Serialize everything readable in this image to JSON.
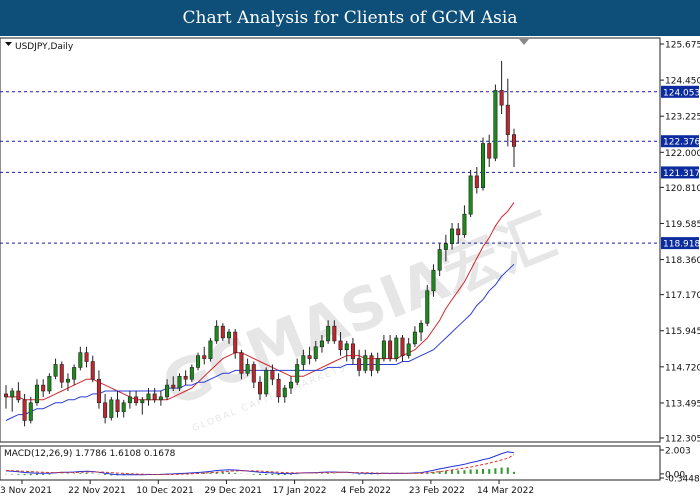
{
  "header": {
    "title": "Chart Analysis for Clients of GCM Asia"
  },
  "watermark": {
    "text": "GCMASIA宏汇",
    "subtext": "GLOBAL CAPITAL MARKETS"
  },
  "colors": {
    "banner": "#0d4f79",
    "bull": "#1a8a1a",
    "bear": "#c0262d",
    "ma_fast": "#d2262d",
    "ma_slow": "#2b3fd6",
    "level_line": "#1a1aaa",
    "level_badge": "#0b2b9e",
    "macd_line": "#2233dd",
    "macd_signal": "#e0312a",
    "macd_hist": "#2f9a2f"
  },
  "chart_data": [
    {
      "type": "candlestick",
      "title": "USDJPY,Daily",
      "ylim": [
        112.305,
        125.675
      ],
      "y_ticks": [
        "125.675",
        "124.450",
        "123.225",
        "122.000",
        "120.810",
        "119.585",
        "118.360",
        "117.170",
        "115.945",
        "114.720",
        "113.495",
        "112.305"
      ],
      "x_ticks": [
        "3 Nov 2021",
        "22 Nov 2021",
        "10 Dec 2021",
        "29 Dec 2021",
        "17 Jan 2022",
        "4 Feb 2022",
        "23 Feb 2022",
        "14 Mar 2022"
      ],
      "horizontal_levels": [
        "124.053",
        "122.376",
        "121.317",
        "118.918"
      ],
      "candles": [
        [
          113.8,
          114.1,
          113.3,
          113.7
        ],
        [
          113.7,
          114.0,
          113.2,
          113.9
        ],
        [
          113.9,
          114.2,
          113.5,
          113.6
        ],
        [
          113.6,
          113.8,
          112.7,
          112.9
        ],
        [
          112.9,
          113.7,
          112.8,
          113.5
        ],
        [
          113.5,
          114.3,
          113.4,
          114.1
        ],
        [
          114.1,
          114.3,
          113.7,
          113.9
        ],
        [
          113.9,
          114.5,
          113.8,
          114.4
        ],
        [
          114.4,
          115.0,
          114.3,
          114.8
        ],
        [
          114.8,
          114.9,
          114.0,
          114.2
        ],
        [
          114.2,
          114.5,
          113.9,
          114.3
        ],
        [
          114.3,
          114.8,
          114.1,
          114.7
        ],
        [
          114.7,
          115.4,
          114.6,
          115.2
        ],
        [
          115.2,
          115.4,
          114.7,
          114.9
        ],
        [
          114.9,
          115.1,
          114.2,
          114.3
        ],
        [
          114.3,
          114.6,
          113.3,
          113.5
        ],
        [
          113.5,
          113.8,
          112.8,
          113.0
        ],
        [
          113.0,
          113.7,
          112.9,
          113.6
        ],
        [
          113.6,
          113.9,
          113.0,
          113.2
        ],
        [
          113.2,
          113.6,
          113.0,
          113.5
        ],
        [
          113.5,
          113.9,
          113.3,
          113.7
        ],
        [
          113.7,
          113.9,
          113.4,
          113.5
        ],
        [
          113.5,
          113.7,
          113.1,
          113.6
        ],
        [
          113.6,
          114.0,
          113.4,
          113.8
        ],
        [
          113.8,
          114.0,
          113.5,
          113.6
        ],
        [
          113.6,
          113.9,
          113.4,
          113.7
        ],
        [
          113.7,
          114.3,
          113.6,
          114.1
        ],
        [
          114.1,
          114.4,
          113.9,
          114.0
        ],
        [
          114.0,
          114.5,
          113.9,
          114.4
        ],
        [
          114.4,
          114.6,
          114.1,
          114.3
        ],
        [
          114.3,
          114.8,
          114.2,
          114.7
        ],
        [
          114.7,
          115.2,
          114.6,
          115.1
        ],
        [
          115.1,
          115.4,
          114.8,
          115.0
        ],
        [
          115.0,
          115.7,
          114.9,
          115.6
        ],
        [
          115.6,
          116.3,
          115.5,
          116.1
        ],
        [
          116.1,
          116.2,
          115.6,
          115.7
        ],
        [
          115.7,
          116.0,
          115.5,
          115.9
        ],
        [
          115.9,
          116.0,
          115.0,
          115.2
        ],
        [
          115.2,
          115.3,
          114.3,
          114.5
        ],
        [
          114.5,
          115.0,
          114.4,
          114.8
        ],
        [
          114.8,
          114.9,
          114.0,
          114.2
        ],
        [
          114.2,
          114.4,
          113.6,
          113.8
        ],
        [
          113.8,
          114.7,
          113.7,
          114.6
        ],
        [
          114.6,
          114.8,
          114.1,
          114.3
        ],
        [
          114.3,
          114.5,
          113.5,
          113.7
        ],
        [
          113.7,
          114.1,
          113.5,
          114.0
        ],
        [
          114.0,
          114.4,
          113.8,
          114.2
        ],
        [
          114.2,
          115.0,
          114.1,
          114.8
        ],
        [
          114.8,
          115.3,
          114.6,
          115.1
        ],
        [
          115.1,
          115.4,
          114.8,
          115.0
        ],
        [
          115.0,
          115.6,
          114.9,
          115.4
        ],
        [
          115.4,
          115.8,
          115.2,
          115.6
        ],
        [
          115.6,
          116.3,
          115.5,
          116.1
        ],
        [
          116.1,
          116.3,
          115.5,
          115.6
        ],
        [
          115.6,
          115.9,
          115.1,
          115.3
        ],
        [
          115.3,
          115.6,
          114.9,
          115.5
        ],
        [
          115.5,
          115.7,
          114.8,
          115.0
        ],
        [
          115.0,
          115.3,
          114.4,
          114.6
        ],
        [
          114.6,
          115.3,
          114.5,
          115.1
        ],
        [
          115.1,
          115.2,
          114.4,
          114.6
        ],
        [
          114.6,
          115.2,
          114.5,
          115.0
        ],
        [
          115.0,
          115.8,
          114.9,
          115.6
        ],
        [
          115.6,
          115.8,
          114.9,
          115.0
        ],
        [
          115.0,
          115.8,
          114.9,
          115.7
        ],
        [
          115.7,
          115.8,
          114.9,
          115.1
        ],
        [
          115.1,
          115.7,
          115.0,
          115.5
        ],
        [
          115.5,
          116.1,
          115.4,
          115.9
        ],
        [
          115.9,
          116.3,
          115.6,
          116.2
        ],
        [
          116.2,
          117.5,
          116.1,
          117.3
        ],
        [
          117.3,
          118.2,
          117.1,
          118.0
        ],
        [
          118.0,
          118.9,
          117.8,
          118.7
        ],
        [
          118.7,
          119.2,
          118.3,
          118.9
        ],
        [
          118.9,
          119.6,
          118.7,
          119.4
        ],
        [
          119.4,
          119.6,
          118.9,
          119.2
        ],
        [
          119.2,
          120.2,
          119.1,
          119.9
        ],
        [
          119.9,
          121.4,
          119.8,
          121.2
        ],
        [
          121.2,
          121.5,
          120.6,
          120.8
        ],
        [
          120.8,
          122.5,
          120.7,
          122.3
        ],
        [
          122.3,
          122.6,
          121.5,
          121.8
        ],
        [
          121.8,
          124.3,
          121.7,
          124.1
        ],
        [
          124.1,
          125.1,
          123.3,
          123.6
        ],
        [
          123.6,
          124.5,
          122.2,
          122.6
        ],
        [
          122.6,
          122.8,
          121.5,
          122.2
        ]
      ],
      "series": [
        {
          "name": "",
          "type": "ma",
          "values": [
            113.7,
            113.7,
            113.7,
            113.6,
            113.6,
            113.6,
            113.6,
            113.7,
            113.8,
            113.9,
            114.0,
            114.1,
            114.2,
            114.3,
            114.3,
            114.2,
            114.1,
            114.0,
            113.9,
            113.8,
            113.7,
            113.6,
            113.6,
            113.6,
            113.6,
            113.6,
            113.6,
            113.7,
            113.8,
            113.9,
            114.0,
            114.2,
            114.4,
            114.6,
            114.8,
            115.0,
            115.1,
            115.2,
            115.2,
            115.1,
            115.0,
            114.9,
            114.8,
            114.7,
            114.6,
            114.5,
            114.4,
            114.4,
            114.4,
            114.5,
            114.6,
            114.7,
            114.8,
            114.9,
            115.0,
            115.1,
            115.1,
            115.1,
            115.0,
            115.0,
            115.0,
            115.0,
            115.0,
            115.0,
            115.1,
            115.2,
            115.3,
            115.5,
            115.7,
            116.0,
            116.3,
            116.7,
            117.0,
            117.3,
            117.6,
            118.0,
            118.4,
            118.8,
            119.1,
            119.5,
            119.8,
            120.0,
            120.3
          ]
        },
        {
          "name": "",
          "type": "ma",
          "values": [
            112.9,
            113.0,
            113.1,
            113.1,
            113.2,
            113.3,
            113.3,
            113.4,
            113.5,
            113.5,
            113.6,
            113.6,
            113.7,
            113.7,
            113.8,
            113.8,
            113.9,
            113.9,
            113.9,
            113.9,
            113.9,
            113.9,
            113.9,
            113.9,
            113.9,
            113.9,
            114.0,
            114.0,
            114.0,
            114.1,
            114.1,
            114.2,
            114.2,
            114.3,
            114.4,
            114.5,
            114.5,
            114.6,
            114.6,
            114.6,
            114.6,
            114.6,
            114.6,
            114.6,
            114.6,
            114.6,
            114.6,
            114.6,
            114.6,
            114.6,
            114.6,
            114.6,
            114.7,
            114.7,
            114.7,
            114.8,
            114.8,
            114.8,
            114.8,
            114.8,
            114.8,
            114.8,
            114.8,
            114.8,
            114.9,
            114.9,
            115.0,
            115.1,
            115.2,
            115.3,
            115.5,
            115.7,
            115.9,
            116.1,
            116.3,
            116.5,
            116.8,
            117.0,
            117.3,
            117.5,
            117.8,
            118.0,
            118.2
          ]
        }
      ]
    },
    {
      "type": "macd",
      "title": "MACD(12,26,9) 1.7786 1.6108 0.1678",
      "ylim": [
        -0.3448,
        2.003
      ],
      "y_ticks": [
        "2.003",
        "0.00",
        "-0.3448"
      ],
      "macd": [
        0.25,
        0.22,
        0.18,
        0.12,
        0.08,
        0.06,
        0.05,
        0.06,
        0.1,
        0.13,
        0.14,
        0.16,
        0.2,
        0.22,
        0.2,
        0.14,
        0.05,
        -0.02,
        -0.06,
        -0.08,
        -0.08,
        -0.08,
        -0.07,
        -0.05,
        -0.05,
        -0.04,
        -0.02,
        0.0,
        0.03,
        0.05,
        0.08,
        0.12,
        0.16,
        0.21,
        0.28,
        0.32,
        0.34,
        0.33,
        0.28,
        0.24,
        0.19,
        0.13,
        0.11,
        0.08,
        0.04,
        0.02,
        0.02,
        0.05,
        0.08,
        0.09,
        0.11,
        0.13,
        0.16,
        0.16,
        0.14,
        0.13,
        0.1,
        0.06,
        0.05,
        0.03,
        0.03,
        0.05,
        0.04,
        0.05,
        0.04,
        0.05,
        0.08,
        0.11,
        0.2,
        0.3,
        0.42,
        0.52,
        0.62,
        0.7,
        0.8,
        0.95,
        1.05,
        1.2,
        1.3,
        1.5,
        1.7,
        1.85,
        1.78
      ],
      "signal": [
        0.28,
        0.27,
        0.25,
        0.22,
        0.19,
        0.16,
        0.14,
        0.12,
        0.11,
        0.11,
        0.11,
        0.12,
        0.13,
        0.15,
        0.16,
        0.16,
        0.14,
        0.11,
        0.07,
        0.04,
        0.01,
        -0.01,
        -0.03,
        -0.04,
        -0.05,
        -0.05,
        -0.05,
        -0.04,
        -0.03,
        -0.01,
        0.01,
        0.04,
        0.07,
        0.1,
        0.14,
        0.18,
        0.22,
        0.25,
        0.26,
        0.26,
        0.25,
        0.23,
        0.2,
        0.17,
        0.14,
        0.11,
        0.09,
        0.08,
        0.08,
        0.08,
        0.09,
        0.1,
        0.11,
        0.12,
        0.13,
        0.13,
        0.12,
        0.11,
        0.1,
        0.08,
        0.07,
        0.06,
        0.06,
        0.05,
        0.05,
        0.05,
        0.05,
        0.06,
        0.09,
        0.13,
        0.19,
        0.26,
        0.33,
        0.41,
        0.49,
        0.58,
        0.68,
        0.79,
        0.9,
        1.03,
        1.17,
        1.31,
        1.61
      ]
    }
  ]
}
